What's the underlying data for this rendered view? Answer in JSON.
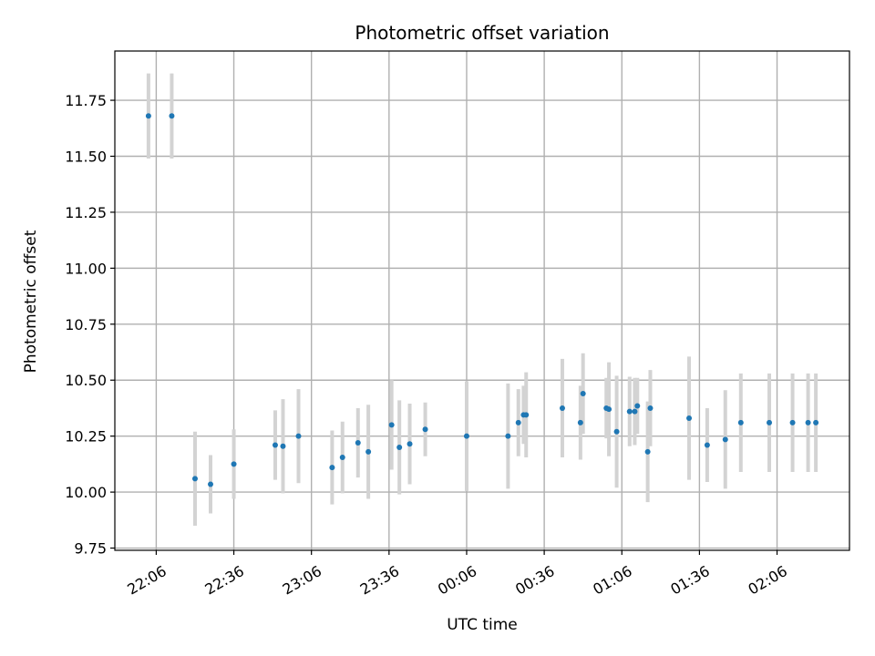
{
  "chart_data": {
    "type": "scatter",
    "title": "Photometric offset variation",
    "xlabel": "UTC time",
    "ylabel": "Photometric offset",
    "x_tick_labels": [
      "22:06",
      "22:36",
      "23:06",
      "23:36",
      "00:06",
      "00:36",
      "01:06",
      "01:36",
      "02:06"
    ],
    "x_tick_minutes": [
      0,
      30,
      60,
      90,
      120,
      150,
      180,
      210,
      240
    ],
    "xlim_minutes": [
      -16,
      268
    ],
    "y_ticks": [
      9.75,
      10.0,
      10.25,
      10.5,
      10.75,
      11.0,
      11.25,
      11.5,
      11.75
    ],
    "y_tick_labels": [
      "9.75",
      "10.00",
      "10.25",
      "10.50",
      "10.75",
      "11.00",
      "11.25",
      "11.50",
      "11.75"
    ],
    "ylim": [
      9.74,
      11.97
    ],
    "grid": true,
    "colors": {
      "points": "#1f77b4",
      "error_bars": "#d3d3d3",
      "grid": "#b0b0b0"
    },
    "points": [
      {
        "t": -3,
        "y": 11.68,
        "err": 0.19
      },
      {
        "t": 6,
        "y": 11.68,
        "err": 0.19
      },
      {
        "t": 15,
        "y": 10.06,
        "err": 0.21
      },
      {
        "t": 21,
        "y": 10.035,
        "err": 0.13
      },
      {
        "t": 30,
        "y": 10.125,
        "err": 0.155
      },
      {
        "t": 46,
        "y": 10.21,
        "err": 0.155
      },
      {
        "t": 49,
        "y": 10.205,
        "err": 0.21
      },
      {
        "t": 55,
        "y": 10.25,
        "err": 0.21
      },
      {
        "t": 68,
        "y": 10.11,
        "err": 0.165
      },
      {
        "t": 72,
        "y": 10.155,
        "err": 0.16
      },
      {
        "t": 78,
        "y": 10.22,
        "err": 0.155
      },
      {
        "t": 82,
        "y": 10.18,
        "err": 0.21
      },
      {
        "t": 91,
        "y": 10.3,
        "err": 0.2
      },
      {
        "t": 94,
        "y": 10.2,
        "err": 0.21
      },
      {
        "t": 98,
        "y": 10.215,
        "err": 0.18
      },
      {
        "t": 104,
        "y": 10.28,
        "err": 0.12
      },
      {
        "t": 120,
        "y": 10.25,
        "err": 0.245
      },
      {
        "t": 136,
        "y": 10.25,
        "err": 0.235
      },
      {
        "t": 140,
        "y": 10.31,
        "err": 0.15
      },
      {
        "t": 142,
        "y": 10.345,
        "err": 0.13
      },
      {
        "t": 143,
        "y": 10.345,
        "err": 0.19
      },
      {
        "t": 157,
        "y": 10.375,
        "err": 0.22
      },
      {
        "t": 164,
        "y": 10.31,
        "err": 0.165
      },
      {
        "t": 165,
        "y": 10.44,
        "err": 0.18
      },
      {
        "t": 174,
        "y": 10.375,
        "err": 0.135
      },
      {
        "t": 175,
        "y": 10.37,
        "err": 0.21
      },
      {
        "t": 178,
        "y": 10.27,
        "err": 0.25
      },
      {
        "t": 183,
        "y": 10.36,
        "err": 0.155
      },
      {
        "t": 185,
        "y": 10.36,
        "err": 0.15
      },
      {
        "t": 186,
        "y": 10.385,
        "err": 0.125
      },
      {
        "t": 190,
        "y": 10.18,
        "err": 0.225
      },
      {
        "t": 191,
        "y": 10.375,
        "err": 0.17
      },
      {
        "t": 206,
        "y": 10.33,
        "err": 0.275
      },
      {
        "t": 213,
        "y": 10.21,
        "err": 0.165
      },
      {
        "t": 220,
        "y": 10.235,
        "err": 0.22
      },
      {
        "t": 226,
        "y": 10.31,
        "err": 0.22
      },
      {
        "t": 237,
        "y": 10.31,
        "err": 0.22
      },
      {
        "t": 246,
        "y": 10.31,
        "err": 0.22
      },
      {
        "t": 252,
        "y": 10.31,
        "err": 0.22
      },
      {
        "t": 255,
        "y": 10.31,
        "err": 0.22
      }
    ]
  }
}
